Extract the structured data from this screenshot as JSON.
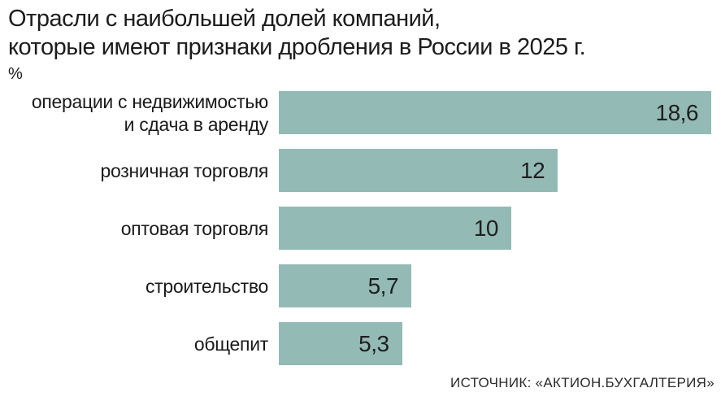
{
  "title": {
    "line1": "Отрасли с наибольшей долей компаний,",
    "line2": "которые имеют признаки дробления в России в 2025 г."
  },
  "unit_label": "%",
  "source": "ИСТОЧНИК: «АКТИОН.БУХГАЛТЕРИЯ»",
  "colors": {
    "bar": "#93bab4",
    "text": "#1a1a1a"
  },
  "chart_data": {
    "type": "bar",
    "orientation": "horizontal",
    "title": "Отрасли с наибольшей долей компаний, которые имеют признаки дробления в России в 2025 г.",
    "unit": "%",
    "categories": [
      "операции с недвижимостью и сдача в аренду",
      "розничная торговля",
      "оптовая торговля",
      "строительство",
      "общепит"
    ],
    "values": [
      18.6,
      12,
      10,
      5.7,
      5.3
    ],
    "value_labels": [
      "18,6",
      "12",
      "10",
      "5,7",
      "5,3"
    ],
    "xlabel": "",
    "ylabel": "",
    "xlim": [
      0,
      18.6
    ],
    "grid": false,
    "legend": false,
    "value_label_position": "inside-end"
  },
  "rows": [
    {
      "label": "операции с недвижимостью\nи сдача в аренду",
      "value": 18.6,
      "value_label": "18,6"
    },
    {
      "label": "розничная торговля",
      "value": 12,
      "value_label": "12"
    },
    {
      "label": "оптовая торговля",
      "value": 10,
      "value_label": "10"
    },
    {
      "label": "строительство",
      "value": 5.7,
      "value_label": "5,7"
    },
    {
      "label": "общепит",
      "value": 5.3,
      "value_label": "5,3"
    }
  ]
}
